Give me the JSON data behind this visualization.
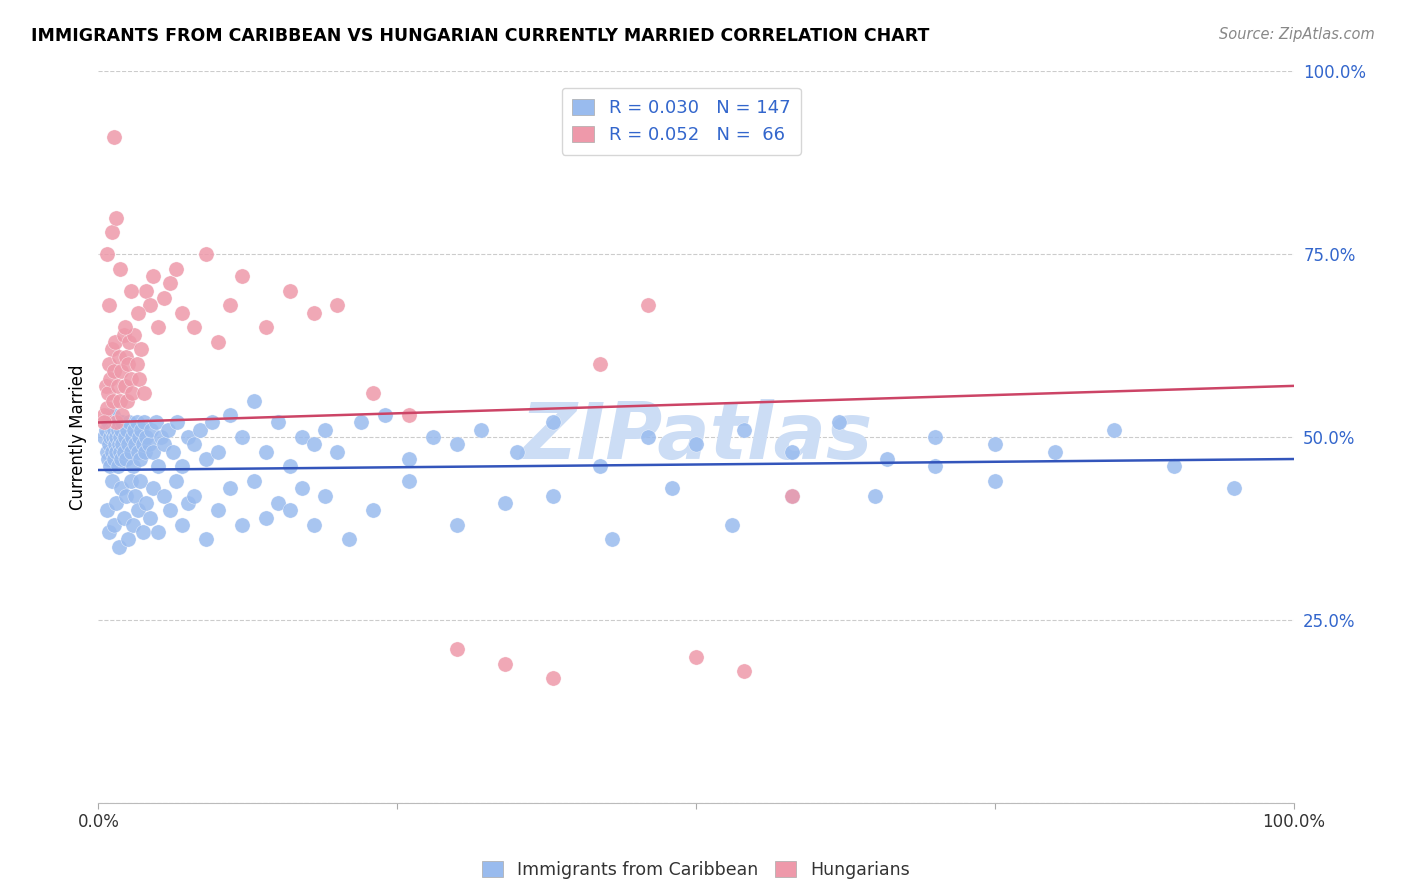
{
  "title": "IMMIGRANTS FROM CARIBBEAN VS HUNGARIAN CURRENTLY MARRIED CORRELATION CHART",
  "source": "Source: ZipAtlas.com",
  "ylabel": "Currently Married",
  "legend_label1": "Immigrants from Caribbean",
  "legend_label2": "Hungarians",
  "R1": "0.030",
  "N1": "147",
  "R2": "0.052",
  "N2": "66",
  "color_blue": "#99BBEE",
  "color_pink": "#EE99AA",
  "line_color_blue": "#3355BB",
  "line_color_pink": "#CC4466",
  "watermark": "ZIPatlas",
  "watermark_color": "#CCDDF5",
  "ylim": [
    0.0,
    1.0
  ],
  "xlim": [
    0.0,
    1.0
  ],
  "yticks": [
    0.0,
    0.25,
    0.5,
    0.75,
    1.0
  ],
  "ytick_labels": [
    "",
    "25.0%",
    "50.0%",
    "75.0%",
    "100.0%"
  ],
  "blue_x": [
    0.005,
    0.006,
    0.007,
    0.008,
    0.008,
    0.009,
    0.009,
    0.01,
    0.01,
    0.011,
    0.011,
    0.012,
    0.012,
    0.013,
    0.013,
    0.014,
    0.014,
    0.015,
    0.015,
    0.016,
    0.016,
    0.017,
    0.017,
    0.018,
    0.018,
    0.019,
    0.019,
    0.02,
    0.02,
    0.021,
    0.022,
    0.023,
    0.024,
    0.025,
    0.026,
    0.027,
    0.028,
    0.029,
    0.03,
    0.031,
    0.032,
    0.033,
    0.034,
    0.035,
    0.036,
    0.037,
    0.038,
    0.039,
    0.04,
    0.042,
    0.044,
    0.046,
    0.048,
    0.05,
    0.052,
    0.055,
    0.058,
    0.062,
    0.066,
    0.07,
    0.075,
    0.08,
    0.085,
    0.09,
    0.095,
    0.1,
    0.11,
    0.12,
    0.13,
    0.14,
    0.15,
    0.16,
    0.17,
    0.18,
    0.19,
    0.2,
    0.22,
    0.24,
    0.26,
    0.28,
    0.3,
    0.32,
    0.35,
    0.38,
    0.42,
    0.46,
    0.5,
    0.54,
    0.58,
    0.62,
    0.66,
    0.7,
    0.75,
    0.8,
    0.85,
    0.9,
    0.95,
    0.007,
    0.009,
    0.011,
    0.013,
    0.015,
    0.017,
    0.019,
    0.021,
    0.023,
    0.025,
    0.027,
    0.029,
    0.031,
    0.033,
    0.035,
    0.037,
    0.04,
    0.043,
    0.046,
    0.05,
    0.055,
    0.06,
    0.065,
    0.07,
    0.075,
    0.08,
    0.09,
    0.1,
    0.11,
    0.12,
    0.13,
    0.14,
    0.15,
    0.16,
    0.17,
    0.18,
    0.19,
    0.21,
    0.23,
    0.26,
    0.3,
    0.34,
    0.38,
    0.43,
    0.48,
    0.53,
    0.58,
    0.65,
    0.7,
    0.75
  ],
  "blue_y": [
    0.5,
    0.51,
    0.48,
    0.52,
    0.47,
    0.49,
    0.53,
    0.5,
    0.46,
    0.51,
    0.48,
    0.5,
    0.53,
    0.47,
    0.51,
    0.49,
    0.52,
    0.48,
    0.5,
    0.46,
    0.51,
    0.49,
    0.52,
    0.48,
    0.5,
    0.47,
    0.51,
    0.49,
    0.52,
    0.48,
    0.5,
    0.47,
    0.51,
    0.49,
    0.52,
    0.48,
    0.5,
    0.46,
    0.51,
    0.49,
    0.52,
    0.48,
    0.5,
    0.47,
    0.51,
    0.49,
    0.52,
    0.48,
    0.5,
    0.49,
    0.51,
    0.48,
    0.52,
    0.46,
    0.5,
    0.49,
    0.51,
    0.48,
    0.52,
    0.46,
    0.5,
    0.49,
    0.51,
    0.47,
    0.52,
    0.48,
    0.53,
    0.5,
    0.55,
    0.48,
    0.52,
    0.46,
    0.5,
    0.49,
    0.51,
    0.48,
    0.52,
    0.53,
    0.47,
    0.5,
    0.49,
    0.51,
    0.48,
    0.52,
    0.46,
    0.5,
    0.49,
    0.51,
    0.48,
    0.52,
    0.47,
    0.5,
    0.49,
    0.48,
    0.51,
    0.46,
    0.43,
    0.4,
    0.37,
    0.44,
    0.38,
    0.41,
    0.35,
    0.43,
    0.39,
    0.42,
    0.36,
    0.44,
    0.38,
    0.42,
    0.4,
    0.44,
    0.37,
    0.41,
    0.39,
    0.43,
    0.37,
    0.42,
    0.4,
    0.44,
    0.38,
    0.41,
    0.42,
    0.36,
    0.4,
    0.43,
    0.38,
    0.44,
    0.39,
    0.41,
    0.4,
    0.43,
    0.38,
    0.42,
    0.36,
    0.4,
    0.44,
    0.38,
    0.41,
    0.42,
    0.36,
    0.43,
    0.38,
    0.42,
    0.42,
    0.46,
    0.44
  ],
  "pink_x": [
    0.005,
    0.006,
    0.007,
    0.008,
    0.009,
    0.01,
    0.011,
    0.012,
    0.013,
    0.014,
    0.015,
    0.016,
    0.017,
    0.018,
    0.019,
    0.02,
    0.021,
    0.022,
    0.023,
    0.024,
    0.025,
    0.026,
    0.027,
    0.028,
    0.03,
    0.032,
    0.034,
    0.036,
    0.038,
    0.04,
    0.043,
    0.046,
    0.05,
    0.055,
    0.06,
    0.065,
    0.07,
    0.08,
    0.09,
    0.1,
    0.11,
    0.12,
    0.14,
    0.16,
    0.18,
    0.2,
    0.23,
    0.26,
    0.3,
    0.34,
    0.38,
    0.42,
    0.46,
    0.5,
    0.54,
    0.58,
    0.005,
    0.007,
    0.009,
    0.011,
    0.013,
    0.015,
    0.018,
    0.022,
    0.027,
    0.033
  ],
  "pink_y": [
    0.53,
    0.57,
    0.54,
    0.56,
    0.6,
    0.58,
    0.62,
    0.55,
    0.59,
    0.63,
    0.52,
    0.57,
    0.61,
    0.55,
    0.59,
    0.53,
    0.64,
    0.57,
    0.61,
    0.55,
    0.6,
    0.63,
    0.58,
    0.56,
    0.64,
    0.6,
    0.58,
    0.62,
    0.56,
    0.7,
    0.68,
    0.72,
    0.65,
    0.69,
    0.71,
    0.73,
    0.67,
    0.65,
    0.75,
    0.63,
    0.68,
    0.72,
    0.65,
    0.7,
    0.67,
    0.68,
    0.56,
    0.53,
    0.21,
    0.19,
    0.17,
    0.6,
    0.68,
    0.2,
    0.18,
    0.42,
    0.52,
    0.75,
    0.68,
    0.78,
    0.91,
    0.8,
    0.73,
    0.65,
    0.7,
    0.67
  ],
  "blue_trend_start": 0.455,
  "blue_trend_end": 0.47,
  "pink_trend_start": 0.52,
  "pink_trend_end": 0.57
}
